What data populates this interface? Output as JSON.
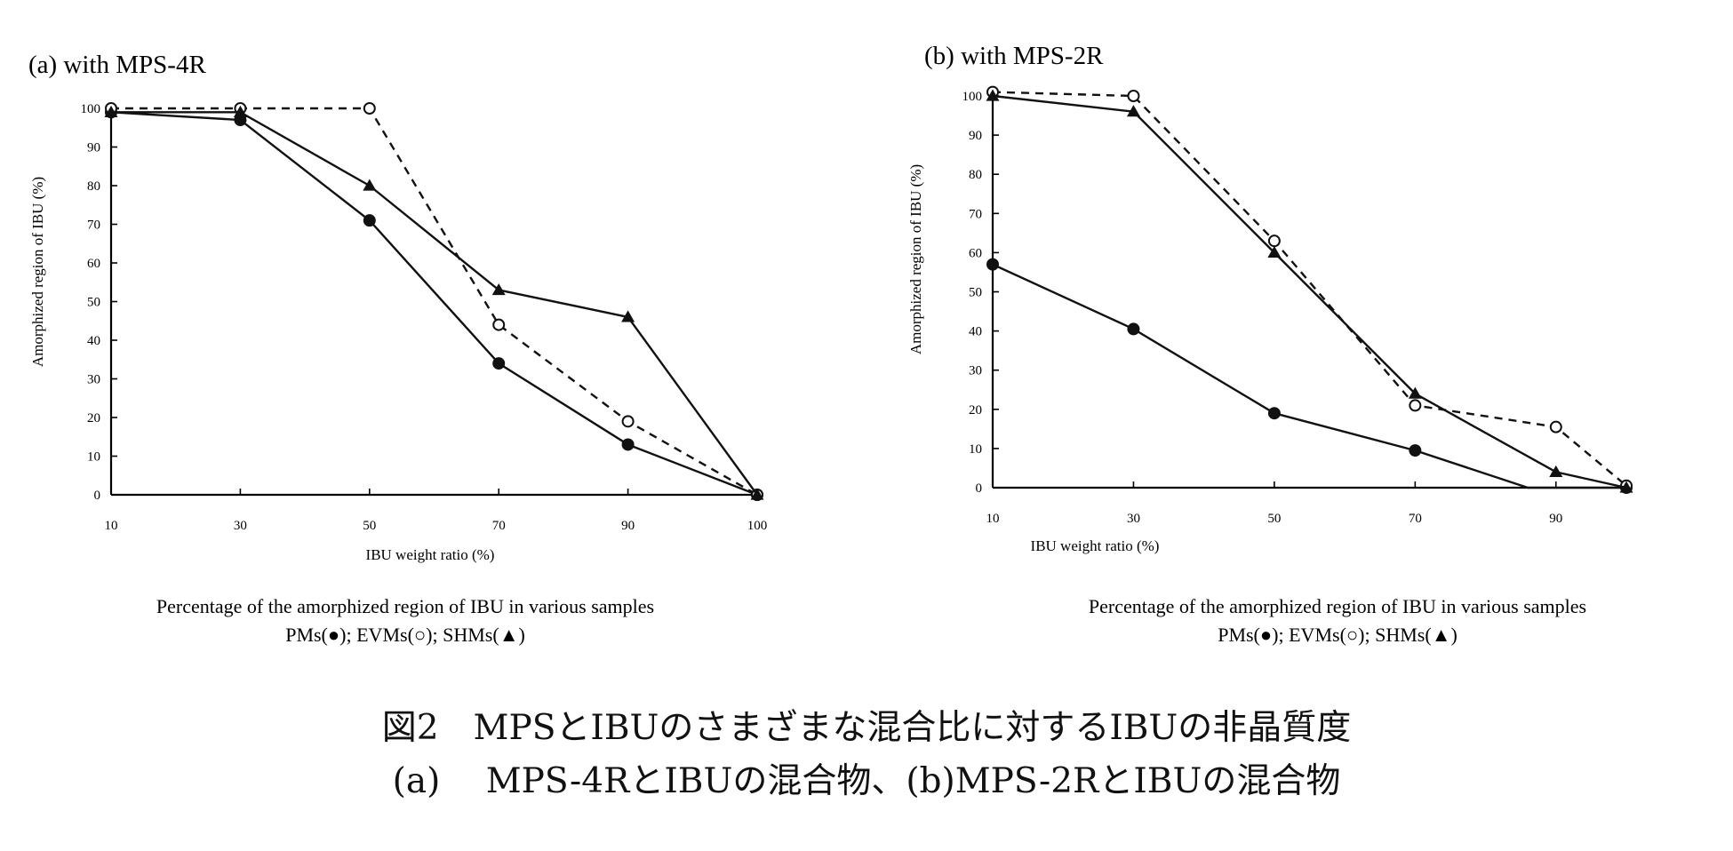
{
  "charts": [
    {
      "panel": "a",
      "title": "(a) with MPS-4R",
      "ylabel": "Amorphized region of IBU (%)",
      "xlabel": "IBU weight ratio (%)",
      "caption_line1": "Percentage of the amorphized region of IBU in various samples",
      "caption_line2": "PMs(●); EVMs(○); SHMs(▲)"
    },
    {
      "panel": "b",
      "title": "(b) with MPS-2R",
      "ylabel": "Amorphized region of IBU (%)",
      "xlabel": "IBU weight ratio (%)",
      "caption_line1": "Percentage of the amorphized region of IBU in various samples",
      "caption_line2": "PMs(●); EVMs(○); SHMs(▲)"
    }
  ],
  "chart_data": [
    {
      "type": "line",
      "title": "(a) with MPS-4R",
      "xlabel": "IBU weight ratio (%)",
      "ylabel": "Amorphized region of IBU (%)",
      "x_categories": [
        "10",
        "30",
        "50",
        "70",
        "90",
        "100"
      ],
      "y_ticks": [
        0,
        10,
        20,
        30,
        40,
        50,
        60,
        70,
        80,
        90,
        100
      ],
      "ylim": [
        0,
        100
      ],
      "legend": "below (in caption)",
      "series": [
        {
          "name": "PMs",
          "marker": "filled-circle",
          "line": "solid",
          "values": [
            99,
            97,
            71,
            34,
            13,
            0
          ]
        },
        {
          "name": "EVMs",
          "marker": "open-circle",
          "line": "dashed",
          "values": [
            100,
            100,
            100,
            44,
            19,
            0
          ]
        },
        {
          "name": "SHMs",
          "marker": "filled-triangle",
          "line": "solid",
          "values": [
            99,
            99,
            80,
            53,
            46,
            0
          ]
        }
      ]
    },
    {
      "type": "line",
      "title": "(b) with MPS-2R",
      "xlabel": "IBU weight ratio (%)",
      "ylabel": "Amorphized region of IBU (%)",
      "x_ticks": [
        10,
        30,
        50,
        70,
        90
      ],
      "xlim": [
        10,
        100
      ],
      "y_ticks": [
        0,
        10,
        20,
        30,
        40,
        50,
        60,
        70,
        80,
        90,
        100
      ],
      "ylim": [
        0,
        100
      ],
      "legend": "below (in caption)",
      "series": [
        {
          "name": "PMs",
          "marker": "filled-circle",
          "line": "solid",
          "x": [
            10,
            30,
            50,
            70,
            86,
            100
          ],
          "values": [
            57,
            40.5,
            19,
            9.5,
            0,
            0
          ],
          "marker_mask": [
            true,
            true,
            true,
            true,
            false,
            true
          ]
        },
        {
          "name": "EVMs",
          "marker": "open-circle",
          "line": "dashed",
          "x": [
            10,
            30,
            50,
            70,
            90,
            100
          ],
          "values": [
            101,
            100,
            63,
            21,
            15.5,
            0.5
          ]
        },
        {
          "name": "SHMs",
          "marker": "filled-triangle",
          "line": "solid",
          "x": [
            10,
            30,
            50,
            70,
            90,
            100
          ],
          "values": [
            100,
            96,
            60,
            24,
            4,
            0
          ]
        }
      ]
    }
  ],
  "figure_caption": {
    "line1": "図2　MPSとIBUのさまざまな混合比に対するIBUの非晶質度",
    "line2": "(a)　 MPS-4RとIBUの混合物、(b)MPS-2RとIBUの混合物"
  }
}
